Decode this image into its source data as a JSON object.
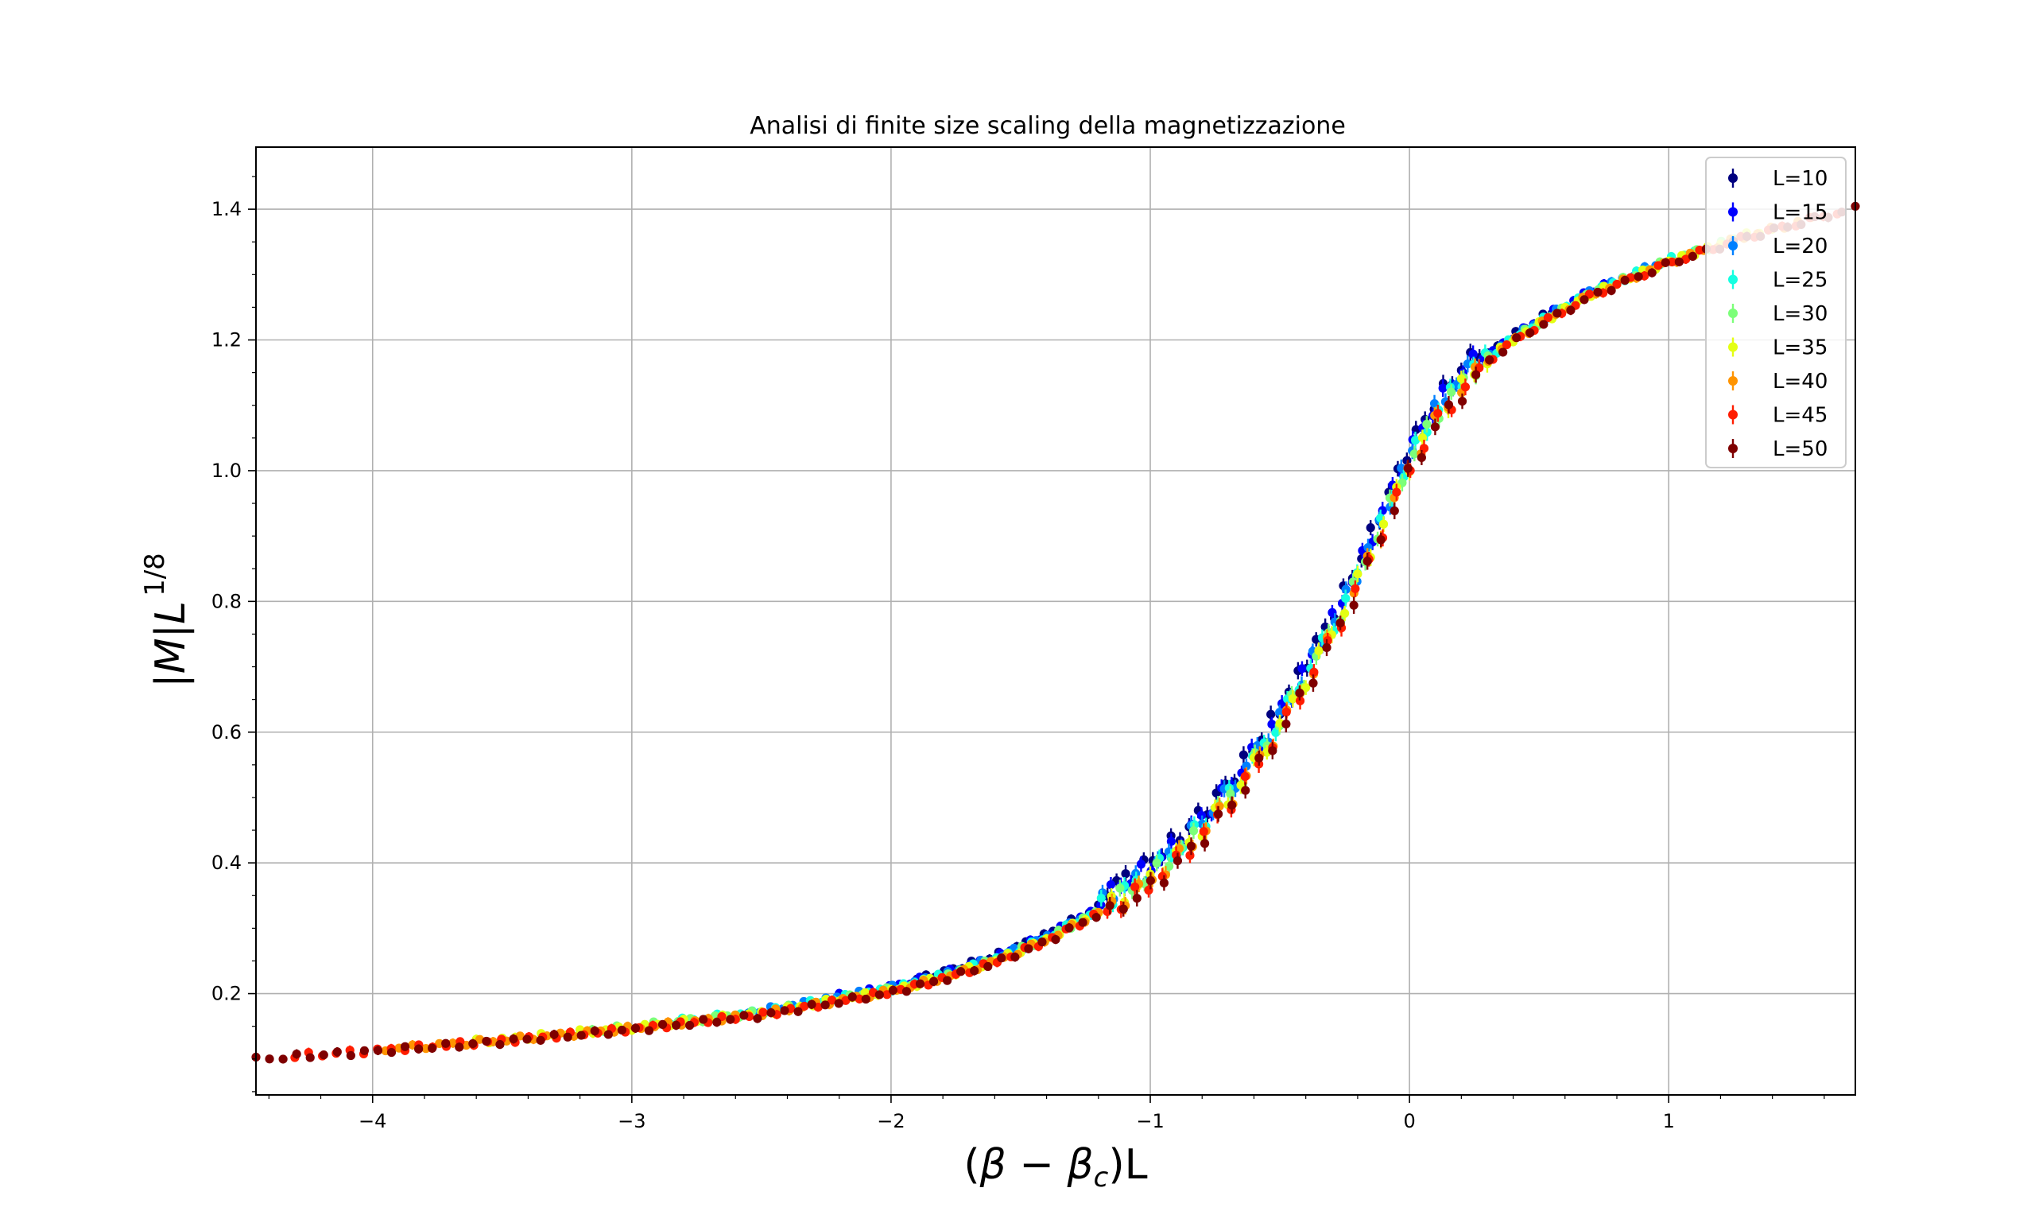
{
  "chart_data": {
    "type": "scatter",
    "title": "Analisi di finite size scaling della magnetizzazione",
    "xlabel": {
      "prefix": "(",
      "beta": "β",
      "minus": " − ",
      "beta_c": "β",
      "sub": "c",
      "suffix": ")L"
    },
    "ylabel": {
      "bar1": "|",
      "M": "M",
      "bar2": "|",
      "L": "L",
      "exp": "1/8"
    },
    "xlim": [
      -4.45,
      1.72
    ],
    "ylim": [
      0.045,
      1.495
    ],
    "grid": true,
    "legend_position": "top-right",
    "x_ticks": [
      {
        "value": -4,
        "label": "−4"
      },
      {
        "value": -3,
        "label": "−3"
      },
      {
        "value": -2,
        "label": "−2"
      },
      {
        "value": -1,
        "label": "−1"
      },
      {
        "value": 0,
        "label": "0"
      },
      {
        "value": 1,
        "label": "1"
      }
    ],
    "y_ticks": [
      {
        "value": 0.2,
        "label": "0.2"
      },
      {
        "value": 0.4,
        "label": "0.4"
      },
      {
        "value": 0.6,
        "label": "0.6"
      },
      {
        "value": 0.8,
        "label": "0.8"
      },
      {
        "value": 1.0,
        "label": "1.0"
      },
      {
        "value": 1.2,
        "label": "1.2"
      },
      {
        "value": 1.4,
        "label": "1.4"
      }
    ],
    "curve": {
      "x": [
        -4.45,
        -4.0,
        -3.5,
        -3.0,
        -2.5,
        -2.0,
        -1.8,
        -1.6,
        -1.4,
        -1.2,
        -1.0,
        -0.9,
        -0.8,
        -0.7,
        -0.6,
        -0.5,
        -0.4,
        -0.3,
        -0.2,
        -0.1,
        0.0,
        0.1,
        0.2,
        0.3,
        0.4,
        0.5,
        0.7,
        1.0,
        1.3,
        1.72
      ],
      "y": [
        0.103,
        0.115,
        0.13,
        0.148,
        0.17,
        0.205,
        0.225,
        0.25,
        0.283,
        0.325,
        0.375,
        0.41,
        0.45,
        0.495,
        0.55,
        0.61,
        0.68,
        0.75,
        0.83,
        0.92,
        1.01,
        1.08,
        1.13,
        1.17,
        1.2,
        1.225,
        1.27,
        1.32,
        1.36,
        1.405
      ]
    },
    "series": [
      {
        "name": "L=10",
        "color": "#00007f",
        "x_range": [
          -1.9,
          0.55
        ],
        "offset": 0.012
      },
      {
        "name": "L=15",
        "color": "#0000fe",
        "x_range": [
          -2.2,
          0.75
        ],
        "offset": 0.009
      },
      {
        "name": "L=20",
        "color": "#0080ff",
        "x_range": [
          -2.55,
          0.95
        ],
        "offset": 0.006
      },
      {
        "name": "L=25",
        "color": "#15ffe1",
        "x_range": [
          -2.85,
          1.1
        ],
        "offset": 0.004
      },
      {
        "name": "L=30",
        "color": "#7cff79",
        "x_range": [
          -3.2,
          1.25
        ],
        "offset": 0.002
      },
      {
        "name": "L=35",
        "color": "#e4ff13",
        "x_range": [
          -3.6,
          1.4
        ],
        "offset": 0.0
      },
      {
        "name": "L=40",
        "color": "#ff9400",
        "x_range": [
          -3.95,
          1.55
        ],
        "offset": -0.002
      },
      {
        "name": "L=45",
        "color": "#ff1d00",
        "x_range": [
          -4.3,
          1.65
        ],
        "offset": -0.004
      },
      {
        "name": "L=50",
        "color": "#7f0000",
        "x_range": [
          -4.45,
          1.72
        ],
        "offset": -0.006
      }
    ]
  }
}
